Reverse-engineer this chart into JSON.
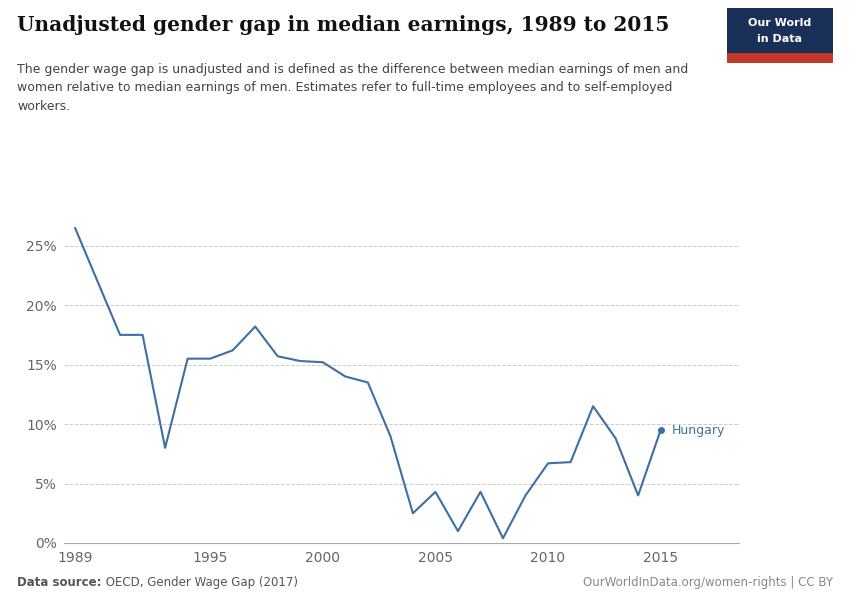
{
  "title": "Unadjusted gender gap in median earnings, 1989 to 2015",
  "subtitle": "The gender wage gap is unadjusted and is defined as the difference between median earnings of men and\nwomen relative to median earnings of men. Estimates refer to full-time employees and to self-employed\nworkers.",
  "datasource_bold": "Data source:",
  "datasource_normal": " OECD, Gender Wage Gap (2017)",
  "url": "OurWorldInData.org/women-rights | CC BY",
  "label": "Hungary",
  "line_color": "#3d6fa3",
  "background_color": "#ffffff",
  "years": [
    1989,
    1991,
    1992,
    1993,
    1994,
    1995,
    1996,
    1997,
    1998,
    1999,
    2000,
    2001,
    2002,
    2003,
    2004,
    2005,
    2006,
    2007,
    2008,
    2009,
    2010,
    2011,
    2012,
    2013,
    2014,
    2015
  ],
  "values": [
    0.265,
    0.175,
    0.175,
    0.08,
    0.155,
    0.155,
    0.162,
    0.182,
    0.157,
    0.153,
    0.152,
    0.14,
    0.135,
    0.09,
    0.025,
    0.043,
    0.01,
    0.043,
    0.004,
    0.04,
    0.067,
    0.068,
    0.115,
    0.088,
    0.04,
    0.095
  ],
  "xlim_min": 1989,
  "xlim_max": 2015,
  "ylim_min": 0,
  "ylim_max": 0.28,
  "yticks": [
    0,
    0.05,
    0.1,
    0.15,
    0.2,
    0.25
  ],
  "xticks": [
    1989,
    1995,
    2000,
    2005,
    2010,
    2015
  ],
  "logo_bg": "#1a3058",
  "logo_red": "#c0392b",
  "grid_color": "#cccccc",
  "tick_color": "#666666",
  "spine_color": "#aaaaaa",
  "title_color": "#111111",
  "subtitle_color": "#444444",
  "footer_color": "#555555",
  "url_color": "#888888"
}
